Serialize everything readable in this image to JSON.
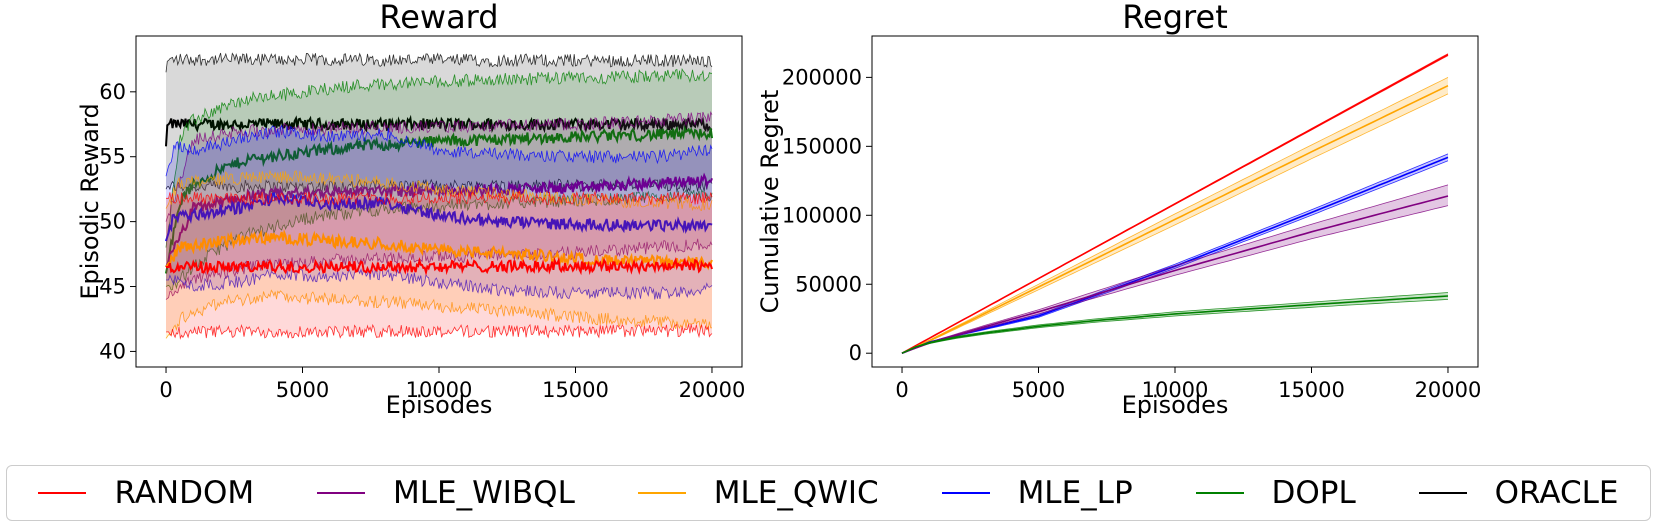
{
  "chart_data": [
    {
      "type": "line",
      "title": "Reward",
      "xlabel": "Episodes",
      "ylabel": "Episodic Reward",
      "xlim": [
        -1100,
        21100
      ],
      "ylim": [
        38.8,
        64.3
      ],
      "xticks": [
        0,
        5000,
        10000,
        15000,
        20000
      ],
      "yticks": [
        40,
        45,
        50,
        55,
        60
      ],
      "shaded_band": "mean ± std",
      "series": [
        {
          "name": "ORACLE",
          "color": "#000000",
          "x": [
            0,
            50,
            500,
            20000
          ],
          "mean": [
            55.8,
            57.5,
            57.5,
            57.5
          ],
          "lower": [
            52.5,
            52.7,
            52.7,
            52.8
          ],
          "upper": [
            61.5,
            62.4,
            62.5,
            62.4
          ]
        },
        {
          "name": "DOPL",
          "color": "#008000",
          "x": [
            0,
            500,
            1000,
            2000,
            3000,
            5000,
            7000,
            10000,
            13000,
            16000,
            20000
          ],
          "mean": [
            46.0,
            51.5,
            52.8,
            54.0,
            54.8,
            55.3,
            55.8,
            56.2,
            56.4,
            56.6,
            56.8
          ],
          "lower": [
            45.0,
            45.5,
            46.5,
            48.0,
            49.0,
            50.2,
            50.8,
            51.2,
            51.5,
            51.7,
            52.0
          ],
          "upper": [
            48.0,
            56.5,
            57.8,
            58.8,
            59.4,
            60.0,
            60.5,
            60.8,
            61.0,
            61.1,
            61.3
          ]
        },
        {
          "name": "MLE_WIBQL",
          "color": "#800080",
          "x": [
            0,
            1000,
            3000,
            6000,
            10000,
            15000,
            20000
          ],
          "mean": [
            46.5,
            51.0,
            52.0,
            52.3,
            52.4,
            52.6,
            53.2
          ],
          "lower": [
            44.0,
            45.5,
            46.5,
            47.0,
            47.3,
            47.6,
            48.3
          ],
          "upper": [
            50.0,
            56.3,
            57.0,
            57.2,
            57.3,
            57.5,
            58.0
          ]
        },
        {
          "name": "MLE_LP",
          "color": "#0000ff",
          "x": [
            0,
            300,
            1000,
            3000,
            4000,
            6000,
            8000,
            10000,
            12000,
            15000,
            18000,
            20000
          ],
          "mean": [
            48.5,
            50.5,
            50.5,
            51.2,
            51.8,
            51.3,
            51.5,
            50.5,
            50.0,
            49.8,
            49.7,
            49.8
          ],
          "lower": [
            45.5,
            45.5,
            45.0,
            45.5,
            46.0,
            45.8,
            46.0,
            45.3,
            44.8,
            44.5,
            44.5,
            44.8
          ],
          "upper": [
            53.5,
            56.0,
            55.5,
            56.5,
            57.0,
            56.5,
            56.8,
            55.5,
            55.2,
            55.0,
            55.0,
            55.5
          ]
        },
        {
          "name": "MLE_QWIC",
          "color": "#ffa500",
          "x": [
            0,
            500,
            2000,
            4000,
            6000,
            8000,
            10000,
            13000,
            16000,
            18000,
            20000
          ],
          "mean": [
            46.5,
            48.0,
            48.5,
            48.8,
            48.5,
            48.3,
            47.8,
            47.5,
            47.0,
            46.9,
            46.8
          ],
          "lower": [
            41.0,
            42.5,
            43.8,
            44.3,
            44.0,
            43.8,
            43.5,
            43.0,
            42.5,
            42.3,
            42.0
          ],
          "upper": [
            51.0,
            53.0,
            53.3,
            53.5,
            53.3,
            53.0,
            52.5,
            52.0,
            51.6,
            51.5,
            51.3
          ]
        },
        {
          "name": "RANDOM",
          "color": "#ff0000",
          "x": [
            0,
            20000
          ],
          "mean": [
            46.5,
            46.6
          ],
          "lower": [
            41.5,
            41.6
          ],
          "upper": [
            51.8,
            51.8
          ]
        }
      ]
    },
    {
      "type": "line",
      "title": "Regret",
      "xlabel": "Episodes",
      "ylabel": "Cumulative Regret",
      "xlim": [
        -1100,
        21100
      ],
      "ylim": [
        -10000,
        230000
      ],
      "xticks": [
        0,
        5000,
        10000,
        15000,
        20000
      ],
      "yticks": [
        0,
        50000,
        100000,
        150000,
        200000
      ],
      "shaded_band": "mean ± std",
      "series": [
        {
          "name": "RANDOM",
          "color": "#ff0000",
          "x": [
            0,
            20000
          ],
          "mean": [
            0,
            216500
          ],
          "lower": [
            0,
            215800
          ],
          "upper": [
            0,
            217200
          ]
        },
        {
          "name": "MLE_QWIC",
          "color": "#ffa500",
          "x": [
            0,
            1000,
            5000,
            10000,
            15000,
            20000
          ],
          "mean": [
            0,
            9000,
            48000,
            97000,
            146000,
            194000
          ],
          "lower": [
            0,
            8500,
            46000,
            93000,
            141000,
            188000
          ],
          "upper": [
            0,
            9500,
            50000,
            101000,
            151000,
            200000
          ]
        },
        {
          "name": "MLE_LP",
          "color": "#0000ff",
          "x": [
            0,
            1000,
            2000,
            5000,
            10000,
            15000,
            20000
          ],
          "mean": [
            0,
            8000,
            13000,
            27000,
            63000,
            102000,
            142000
          ],
          "lower": [
            0,
            7800,
            12500,
            26000,
            61500,
            100000,
            139500
          ],
          "upper": [
            0,
            8200,
            13500,
            28000,
            64500,
            104000,
            144500
          ]
        },
        {
          "name": "MLE_WIBQL",
          "color": "#800080",
          "x": [
            0,
            1000,
            3000,
            5000,
            10000,
            15000,
            20000
          ],
          "mean": [
            0,
            7500,
            19000,
            30000,
            60000,
            88000,
            114000
          ],
          "lower": [
            0,
            7000,
            18000,
            28500,
            56500,
            83000,
            107000
          ],
          "upper": [
            0,
            8000,
            20000,
            31500,
            63500,
            93500,
            122000
          ]
        },
        {
          "name": "DOPL",
          "color": "#008000",
          "x": [
            0,
            500,
            1000,
            2000,
            3000,
            5000,
            7000,
            10000,
            13000,
            16000,
            20000
          ],
          "mean": [
            0,
            4500,
            7500,
            11500,
            14500,
            19500,
            23500,
            28500,
            32500,
            36500,
            41500
          ],
          "lower": [
            0,
            4300,
            7000,
            10800,
            13700,
            18500,
            22300,
            27000,
            30800,
            34500,
            39000
          ],
          "upper": [
            0,
            4700,
            8000,
            12200,
            15300,
            20500,
            24700,
            30000,
            34200,
            38500,
            44000
          ]
        }
      ]
    }
  ],
  "legend": [
    {
      "label": "RANDOM",
      "color": "#ff0000"
    },
    {
      "label": "MLE_WIBQL",
      "color": "#800080"
    },
    {
      "label": "MLE_QWIC",
      "color": "#ffa500"
    },
    {
      "label": "MLE_LP",
      "color": "#0000ff"
    },
    {
      "label": "DOPL",
      "color": "#008000"
    },
    {
      "label": "ORACLE",
      "color": "#000000"
    }
  ]
}
